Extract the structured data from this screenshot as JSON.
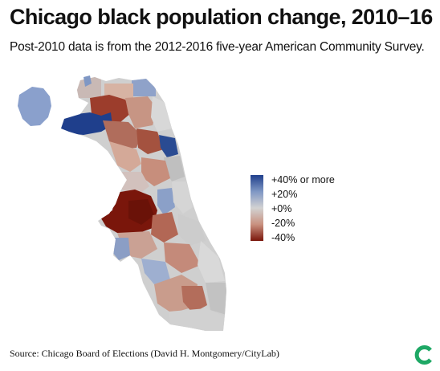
{
  "title": "Chicago black population change, 2010–16",
  "subtitle": "Post-2010 data is from the 2012-2016 five-year American Community Survey.",
  "legend": {
    "colors": [
      "#1f3f8c",
      "#7f97c4",
      "#d2d2d2",
      "#c9917f",
      "#7a160b"
    ],
    "labels": [
      "+40% or more",
      "+20%",
      "+0%",
      "-20%",
      "-40%"
    ]
  },
  "source": "Source: Chicago Board of Elections (David H. Montgomery/CityLab)",
  "logo": {
    "icon": "citylab-logo-icon",
    "color": "#1ea865"
  },
  "map": {
    "fill_base": "#cfcfcf",
    "district_colors": {
      "strong_increase": "#1f3f8c",
      "increase": "#7f97c4",
      "no_change": "#d2d2d2",
      "decrease": "#c9917f",
      "strong_decrease": "#7a160b"
    }
  }
}
